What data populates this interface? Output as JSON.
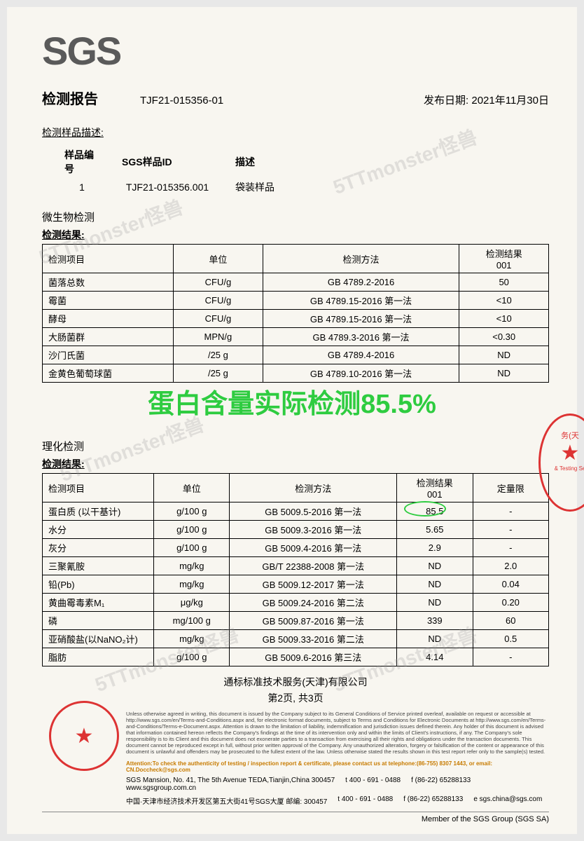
{
  "logo": "SGS",
  "report_title": "检测报告",
  "report_id": "TJF21-015356-01",
  "issue_date_label": "发布日期:",
  "issue_date": "2021年11月30日",
  "sample_desc_label": "检测样品描述:",
  "sample_table": {
    "headers": [
      "样品编号",
      "SGS样品ID",
      "描述"
    ],
    "row": [
      "1",
      "TJF21-015356.001",
      "袋装样品"
    ]
  },
  "micro_section": "微生物检测",
  "result_label": "检测结果:",
  "micro_table": {
    "headers": [
      "检测项目",
      "单位",
      "检测方法",
      "检测结果\n001"
    ],
    "rows": [
      [
        "菌落总数",
        "CFU/g",
        "GB 4789.2-2016",
        "50"
      ],
      [
        "霉菌",
        "CFU/g",
        "GB 4789.15-2016 第一法",
        "<10"
      ],
      [
        "酵母",
        "CFU/g",
        "GB 4789.15-2016 第一法",
        "<10"
      ],
      [
        "大肠菌群",
        "MPN/g",
        "GB 4789.3-2016 第一法",
        "<0.30"
      ],
      [
        "沙门氏菌",
        "/25 g",
        "GB 4789.4-2016",
        "ND"
      ],
      [
        "金黄色葡萄球菌",
        "/25 g",
        "GB 4789.10-2016 第一法",
        "ND"
      ]
    ]
  },
  "overlay_text": "蛋白含量实际检测85.5%",
  "phys_section": "理化检测",
  "phys_table": {
    "headers": [
      "检测项目",
      "单位",
      "检测方法",
      "检测结果\n001",
      "定量限"
    ],
    "rows": [
      [
        "蛋白质 (以干基计)",
        "g/100 g",
        "GB 5009.5-2016 第一法",
        "85.5",
        "-"
      ],
      [
        "水分",
        "g/100 g",
        "GB 5009.3-2016 第一法",
        "5.65",
        "-"
      ],
      [
        "灰分",
        "g/100 g",
        "GB 5009.4-2016 第一法",
        "2.9",
        "-"
      ],
      [
        "三聚氰胺",
        "mg/kg",
        "GB/T 22388-2008 第一法",
        "ND",
        "2.0"
      ],
      [
        "铅(Pb)",
        "mg/kg",
        "GB 5009.12-2017 第一法",
        "ND",
        "0.04"
      ],
      [
        "黄曲霉毒素M₁",
        "μg/kg",
        "GB 5009.24-2016 第二法",
        "ND",
        "0.20"
      ],
      [
        "磷",
        "mg/100 g",
        "GB 5009.87-2016 第一法",
        "339",
        "60"
      ],
      [
        "亚硝酸盐(以NaNO₂计)",
        "mg/kg",
        "GB 5009.33-2016 第二法",
        "ND",
        "0.5"
      ],
      [
        "脂肪",
        "g/100 g",
        "GB 5009.6-2016 第三法",
        "4.14",
        "-"
      ]
    ]
  },
  "company_name": "通标标准技术服务(天津)有限公司",
  "page_info": "第2页, 共3页",
  "disclaimer": "Unless otherwise agreed in writing, this document is issued by the Company subject to its General Conditions of Service printed overleaf, available on request or accessible at http://www.sgs.com/en/Terms-and-Conditions.aspx and, for electronic format documents, subject to Terms and Conditions for Electronic Documents at http://www.sgs.com/en/Terms-and-Conditions/Terms-e-Document.aspx. Attention is drawn to the limitation of liability, indemnification and jurisdiction issues defined therein. Any holder of this document is advised that information contained hereon reflects the Company's findings at the time of its intervention only and within the limits of Client's instructions, if any. The Company's sole responsibility is to its Client and this document does not exonerate parties to a transaction from exercising all their rights and obligations under the transaction documents. This document cannot be reproduced except in full, without prior written approval of the Company. Any unauthorized alteration, forgery or falsification of the content or appearance of this document is unlawful and offenders may be prosecuted to the fullest extent of the law. Unless otherwise stated the results shown in this test report refer only to the sample(s) tested.",
  "attention": "Attention:To check the authenticity of testing / inspection report & certificate, please contact us at telephone:(86-755) 8307 1443, or email: CN.Doccheck@sgs.com",
  "address1": "SGS Mansion, No. 41, The 5th Avenue TEDA,Tianjin,China 300457",
  "address2": "中国·天津市经济技术开发区第五大街41号SGS大厦  邮编: 300457",
  "tel": "t 400 - 691 - 0488",
  "fax": "f (86-22) 65288133",
  "web": "www.sgsgroup.com.cn",
  "email": "e sgs.china@sgs.com",
  "member": "Member of the SGS Group (SGS SA)",
  "watermark_text": "5TTmonster怪兽",
  "colors": {
    "overlay_green": "#2ecc40",
    "stamp_red": "#d33",
    "text": "#000000",
    "background": "#f8f6f0"
  }
}
